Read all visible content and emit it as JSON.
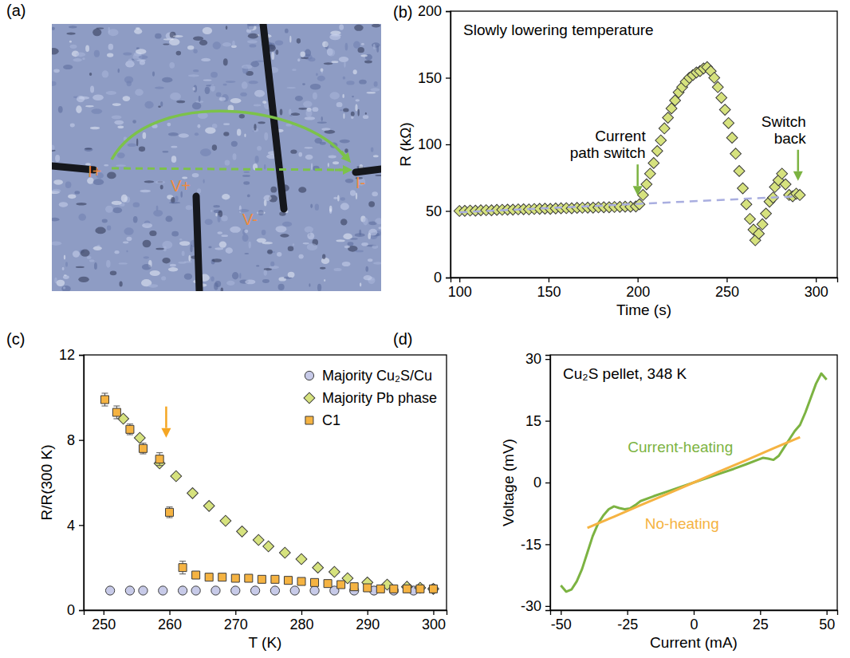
{
  "image": {
    "panel_label": "(a)",
    "labels": [
      "I+",
      "V+",
      "V-",
      "I-"
    ]
  },
  "chart_data": [
    {
      "panel_label": "(b)",
      "type": "scatter",
      "x_label": "Time (s)",
      "y_label": "R (kΩ)",
      "xlim": [
        95,
        312
      ],
      "ylim": [
        0,
        200
      ],
      "xticks": [
        100,
        150,
        200,
        250,
        300
      ],
      "yticks": [
        0,
        50,
        100,
        150,
        200
      ],
      "series": [
        {
          "type": "scatter",
          "marker": "diamond",
          "color": "#d6e27e",
          "x": [
            100,
            103,
            106,
            109,
            112,
            115,
            118,
            121,
            124,
            127,
            130,
            133,
            136,
            139,
            142,
            145,
            148,
            151,
            154,
            157,
            160,
            163,
            166,
            169,
            172,
            175,
            178,
            181,
            184,
            187,
            190,
            193,
            196,
            199,
            201,
            203,
            205,
            207,
            209,
            211,
            213,
            215,
            217,
            219,
            221,
            223,
            225,
            227,
            229,
            231,
            233,
            235,
            237,
            239,
            241,
            243,
            245,
            247,
            249,
            251,
            253,
            255,
            257,
            259,
            261,
            263,
            265,
            266,
            268,
            270,
            272,
            274,
            276,
            277,
            279,
            281,
            283,
            285,
            287,
            289,
            291
          ],
          "values": [
            50.0,
            50.1,
            50.3,
            50.2,
            50.5,
            50.6,
            50.5,
            50.8,
            50.9,
            51.0,
            51.0,
            51.2,
            51.3,
            51.2,
            51.5,
            51.6,
            51.7,
            51.6,
            51.9,
            52.0,
            52.1,
            52.0,
            52.3,
            52.4,
            52.5,
            52.5,
            52.7,
            52.8,
            52.8,
            53.0,
            53.1,
            53.2,
            53.2,
            53.4,
            55,
            62,
            70,
            78,
            86,
            95,
            103,
            112,
            120,
            127,
            133,
            139,
            143,
            147,
            150,
            152,
            154,
            155,
            157,
            158,
            155,
            150,
            143,
            135,
            126,
            116,
            105,
            93,
            80,
            67,
            55,
            44,
            36,
            28,
            33,
            40,
            48,
            57,
            60,
            68,
            73,
            78,
            70,
            62,
            61,
            63,
            62
          ]
        },
        {
          "type": "line",
          "line_style": "dashed",
          "color": "#a9aee0",
          "x": [
            100,
            290
          ],
          "values": [
            49,
            61
          ]
        }
      ],
      "annotations": [
        {
          "text": "Slowly lowering temperature"
        },
        {
          "text": "Current path switch",
          "x": 200,
          "y": 55,
          "color": "#7cb342"
        },
        {
          "text": "Switch back",
          "x": 290,
          "y": 66,
          "color": "#7cb342"
        }
      ]
    },
    {
      "panel_label": "(c)",
      "type": "scatter",
      "x_label": "T (K)",
      "y_label": "R/R(300 K)",
      "xlim": [
        247,
        302
      ],
      "ylim": [
        0,
        12
      ],
      "xticks": [
        250,
        260,
        270,
        280,
        290,
        300
      ],
      "yticks": [
        0,
        4,
        8,
        12
      ],
      "legend": "upper right",
      "series": [
        {
          "name": "Majority Cu₂S/Cu",
          "marker": "circle",
          "color": "#c7cae8",
          "x": [
            251,
            254,
            256,
            259,
            262,
            264,
            267,
            270,
            273,
            276,
            279,
            282,
            285,
            288,
            291,
            294,
            297,
            300
          ],
          "values": [
            0.92,
            0.92,
            0.92,
            0.92,
            0.92,
            0.92,
            0.92,
            0.92,
            0.92,
            0.92,
            0.92,
            0.92,
            0.92,
            0.92,
            0.92,
            0.92,
            0.92,
            1.0
          ],
          "errors": [
            0.1,
            0.1,
            0.1,
            0.1,
            0.1,
            0.1,
            0.1,
            0.1,
            0.1,
            0.1,
            0.1,
            0.1,
            0.1,
            0.1,
            0.1,
            0.1,
            0.1,
            0.1
          ]
        },
        {
          "name": "Majority Pb phase",
          "marker": "diamond",
          "color": "#d6e27e",
          "x": [
            253,
            255.5,
            258.5,
            261,
            263.5,
            266,
            268.5,
            271,
            273.5,
            275,
            277.5,
            280,
            282.5,
            285,
            287,
            290,
            293,
            296,
            298,
            300
          ],
          "values": [
            9.0,
            8.1,
            6.9,
            6.3,
            5.5,
            4.9,
            4.2,
            3.7,
            3.3,
            3.0,
            2.7,
            2.4,
            2.0,
            1.8,
            1.5,
            1.3,
            1.2,
            1.1,
            1.05,
            1.0
          ]
        },
        {
          "name": "C1",
          "marker": "square",
          "color": "#f5b342",
          "x": [
            250.2,
            252,
            254,
            256,
            258.5,
            260,
            262,
            264,
            266,
            268,
            270,
            272,
            274,
            276,
            278,
            280,
            282,
            284,
            286,
            288,
            290,
            292,
            294,
            296,
            298,
            300
          ],
          "values": [
            9.9,
            9.3,
            8.5,
            7.6,
            7.1,
            4.6,
            2.0,
            1.65,
            1.55,
            1.55,
            1.5,
            1.5,
            1.45,
            1.45,
            1.4,
            1.35,
            1.3,
            1.25,
            1.2,
            1.1,
            1.05,
            1.0,
            1.0,
            1.0,
            1.0,
            1.0
          ],
          "errors": [
            0.3,
            0.3,
            0.25,
            0.25,
            0.3,
            0.25,
            0.3,
            0.15,
            0.1,
            0.1,
            0.1,
            0.1,
            0.1,
            0.1,
            0.1,
            0.1,
            0.1,
            0.1,
            0.1,
            0.1,
            0.1,
            0.1,
            0.1,
            0.1,
            0.1,
            0.1
          ]
        }
      ],
      "annotations": [
        {
          "x": 259.5,
          "y": 7.7,
          "color": "#f5a623"
        }
      ]
    },
    {
      "panel_label": "(d)",
      "type": "line",
      "x_label": "Current (mA)",
      "y_label": "Voltage (mV)",
      "xlim": [
        -54,
        54
      ],
      "ylim": [
        -31,
        31
      ],
      "xticks": [
        -50,
        -25,
        0,
        25,
        50
      ],
      "yticks": [
        -30,
        -15,
        0,
        15,
        30
      ],
      "series": [
        {
          "name": "Current-heating",
          "color": "#7cb342",
          "x": [
            -50,
            -48,
            -46,
            -44,
            -42,
            -40,
            -38,
            -36,
            -34,
            -32,
            -30,
            -28,
            -26,
            -24,
            -22,
            -20,
            -15,
            -10,
            -5,
            0,
            5,
            10,
            15,
            20,
            24,
            26,
            28,
            30,
            32,
            34,
            36,
            38,
            40,
            42,
            44,
            46,
            48,
            50
          ],
          "values": [
            -25,
            -26.5,
            -26,
            -24,
            -21,
            -17,
            -13,
            -10,
            -8,
            -6.5,
            -5.8,
            -6.2,
            -6.5,
            -6.3,
            -5.5,
            -4.5,
            -3.3,
            -2.2,
            -1.1,
            0,
            1.1,
            2.2,
            3.3,
            4.5,
            5.5,
            6,
            5.8,
            5.5,
            6.5,
            8.5,
            10.5,
            12.5,
            14,
            17,
            20.5,
            24,
            26.5,
            25
          ]
        },
        {
          "name": "No-heating",
          "color": "#f5b342",
          "x": [
            -40,
            -30,
            -20,
            -10,
            0,
            10,
            20,
            30,
            40
          ],
          "values": [
            -11,
            -8.3,
            -5.5,
            -2.8,
            0,
            2.8,
            5.5,
            8.3,
            11
          ]
        }
      ],
      "annotations": [
        {
          "text": "Cu₂S pellet, 348 K"
        }
      ]
    }
  ]
}
